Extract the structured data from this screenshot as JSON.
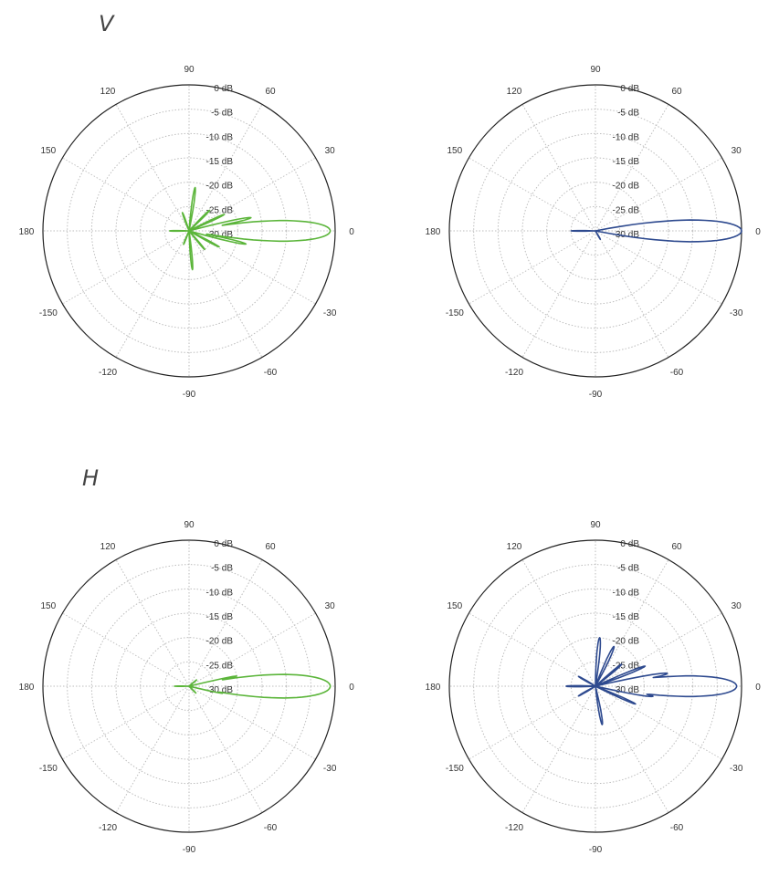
{
  "row_labels": {
    "top": "V",
    "bottom": "H"
  },
  "colors": {
    "green": "#5bb53a",
    "blue": "#2e4a8f",
    "grid": "#bdbdbd",
    "frame": "#222222"
  },
  "polar_common": {
    "angle_ticks": [
      {
        "deg": 0,
        "label": "0"
      },
      {
        "deg": 30,
        "label": "30"
      },
      {
        "deg": 60,
        "label": "60"
      },
      {
        "deg": 90,
        "label": "90"
      },
      {
        "deg": 120,
        "label": "120"
      },
      {
        "deg": 150,
        "label": "150"
      },
      {
        "deg": 180,
        "label": "180"
      },
      {
        "deg": -150,
        "label": "-150"
      },
      {
        "deg": -120,
        "label": "-120"
      },
      {
        "deg": -90,
        "label": "-90"
      },
      {
        "deg": -60,
        "label": "-60"
      },
      {
        "deg": -30,
        "label": "-30"
      }
    ],
    "radial_ticks": [
      {
        "db": 0,
        "label": "0 dB"
      },
      {
        "db": -5,
        "label": "-5 dB"
      },
      {
        "db": -10,
        "label": "-10 dB"
      },
      {
        "db": -15,
        "label": "-15 dB"
      },
      {
        "db": -20,
        "label": "-20 dB"
      },
      {
        "db": -25,
        "label": "-25 dB"
      },
      {
        "db": -30,
        "label": "-30 dB"
      }
    ],
    "r_range_db": [
      -30,
      0
    ]
  },
  "chart_data": [
    {
      "type": "line",
      "polar": true,
      "group": "V",
      "color": "#5bb53a",
      "series": [
        {
          "lobes": [
            {
              "center_deg": 0,
              "peak_db": -1,
              "half_width_deg": 7
            },
            {
              "center_deg": 12,
              "peak_db": -17,
              "half_width_deg": 3
            },
            {
              "center_deg": -13,
              "peak_db": -18,
              "half_width_deg": 3
            },
            {
              "center_deg": 25,
              "peak_db": -22,
              "half_width_deg": 3
            },
            {
              "center_deg": -28,
              "peak_db": -23,
              "half_width_deg": 3
            },
            {
              "center_deg": 45,
              "peak_db": -24,
              "half_width_deg": 4
            },
            {
              "center_deg": -50,
              "peak_db": -25,
              "half_width_deg": 4
            },
            {
              "center_deg": 82,
              "peak_db": -21,
              "half_width_deg": 4
            },
            {
              "center_deg": -85,
              "peak_db": -22,
              "half_width_deg": 4
            },
            {
              "center_deg": 110,
              "peak_db": -26,
              "half_width_deg": 5
            },
            {
              "center_deg": -112,
              "peak_db": -27,
              "half_width_deg": 5
            },
            {
              "center_deg": 180,
              "peak_db": -26,
              "half_width_deg": 4
            }
          ],
          "floor_db": -30
        }
      ]
    },
    {
      "type": "line",
      "polar": true,
      "group": "V",
      "color": "#2e4a8f",
      "series": [
        {
          "lobes": [
            {
              "center_deg": 0,
              "peak_db": 0,
              "half_width_deg": 7
            },
            {
              "center_deg": -60,
              "peak_db": -28,
              "half_width_deg": 5
            },
            {
              "center_deg": 180,
              "peak_db": -25,
              "half_width_deg": 3
            }
          ],
          "floor_db": -30
        }
      ]
    },
    {
      "type": "line",
      "polar": true,
      "group": "H",
      "color": "#5bb53a",
      "series": [
        {
          "lobes": [
            {
              "center_deg": 0,
              "peak_db": -1,
              "half_width_deg": 8
            },
            {
              "center_deg": 12,
              "peak_db": -20,
              "half_width_deg": 2
            },
            {
              "center_deg": -12,
              "peak_db": -23,
              "half_width_deg": 2
            },
            {
              "center_deg": 40,
              "peak_db": -28,
              "half_width_deg": 4
            },
            {
              "center_deg": -45,
              "peak_db": -28,
              "half_width_deg": 4
            },
            {
              "center_deg": 180,
              "peak_db": -27,
              "half_width_deg": 4
            }
          ],
          "floor_db": -30
        }
      ]
    },
    {
      "type": "line",
      "polar": true,
      "group": "H",
      "color": "#2e4a8f",
      "series": [
        {
          "lobes": [
            {
              "center_deg": 0,
              "peak_db": -1,
              "half_width_deg": 7
            },
            {
              "center_deg": 10,
              "peak_db": -15,
              "half_width_deg": 3
            },
            {
              "center_deg": -10,
              "peak_db": -18,
              "half_width_deg": 3
            },
            {
              "center_deg": 22,
              "peak_db": -19,
              "half_width_deg": 3
            },
            {
              "center_deg": -24,
              "peak_db": -21,
              "half_width_deg": 3
            },
            {
              "center_deg": 40,
              "peak_db": -23,
              "half_width_deg": 4
            },
            {
              "center_deg": 65,
              "peak_db": -21,
              "half_width_deg": 5
            },
            {
              "center_deg": 85,
              "peak_db": -20,
              "half_width_deg": 5
            },
            {
              "center_deg": -80,
              "peak_db": -22,
              "half_width_deg": 5
            },
            {
              "center_deg": 150,
              "peak_db": -26,
              "half_width_deg": 5
            },
            {
              "center_deg": -150,
              "peak_db": -26,
              "half_width_deg": 5
            },
            {
              "center_deg": 180,
              "peak_db": -24,
              "half_width_deg": 4
            }
          ],
          "floor_db": -30
        }
      ]
    }
  ]
}
